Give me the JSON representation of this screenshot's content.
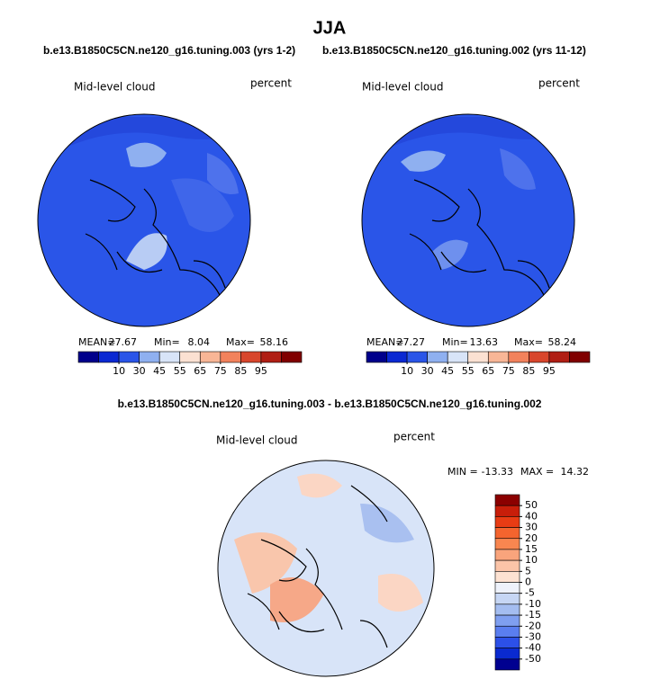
{
  "title": "JJA",
  "panels": [
    {
      "subtitle": "b.e13.B1850C5CN.ne120_g16.tuning.003 (yrs 1-2)",
      "variable": "Mid-level cloud",
      "units": "percent",
      "mean_label": "MEAN=",
      "mean": 27.67,
      "min_label": "Min=",
      "min": 8.04,
      "max_label": "Max=",
      "max": 58.16
    },
    {
      "subtitle": "b.e13.B1850C5CN.ne120_g16.tuning.002 (yrs 11-12)",
      "variable": "Mid-level cloud",
      "units": "percent",
      "mean_label": "MEAN=",
      "mean": 27.27,
      "min_label": "Min=",
      "min": 13.63,
      "max_label": "Max=",
      "max": 58.24
    }
  ],
  "colorbar": {
    "colors": [
      "#00008b",
      "#0a28d2",
      "#2a55e8",
      "#8fb0f0",
      "#d8e4f8",
      "#fbe1d2",
      "#f8b696",
      "#f2825c",
      "#d8462c",
      "#b01e14",
      "#800000"
    ],
    "ticks": [
      10,
      30,
      45,
      55,
      65,
      75,
      85,
      95
    ]
  },
  "difference": {
    "subtitle": "b.e13.B1850C5CN.ne120_g16.tuning.003 - b.e13.B1850C5CN.ne120_g16.tuning.002",
    "variable": "Mid-level cloud",
    "units": "percent",
    "min_label": "MIN =",
    "min": -13.33,
    "max_label": "MAX =",
    "max": 14.32,
    "colorbar": {
      "colors": [
        "#8b0000",
        "#c81e0a",
        "#e83c14",
        "#f4642e",
        "#f88650",
        "#f9a47c",
        "#fbc4a8",
        "#fde2d2",
        "#eef2fb",
        "#c6d6f4",
        "#a4bdf0",
        "#7f9ff0",
        "#5a7ef0",
        "#2c50e8",
        "#0a2ad0",
        "#000090"
      ],
      "ticks": [
        50,
        40,
        30,
        20,
        15,
        10,
        5,
        0,
        -5,
        -10,
        -15,
        -20,
        -30,
        -40,
        -50
      ]
    }
  }
}
